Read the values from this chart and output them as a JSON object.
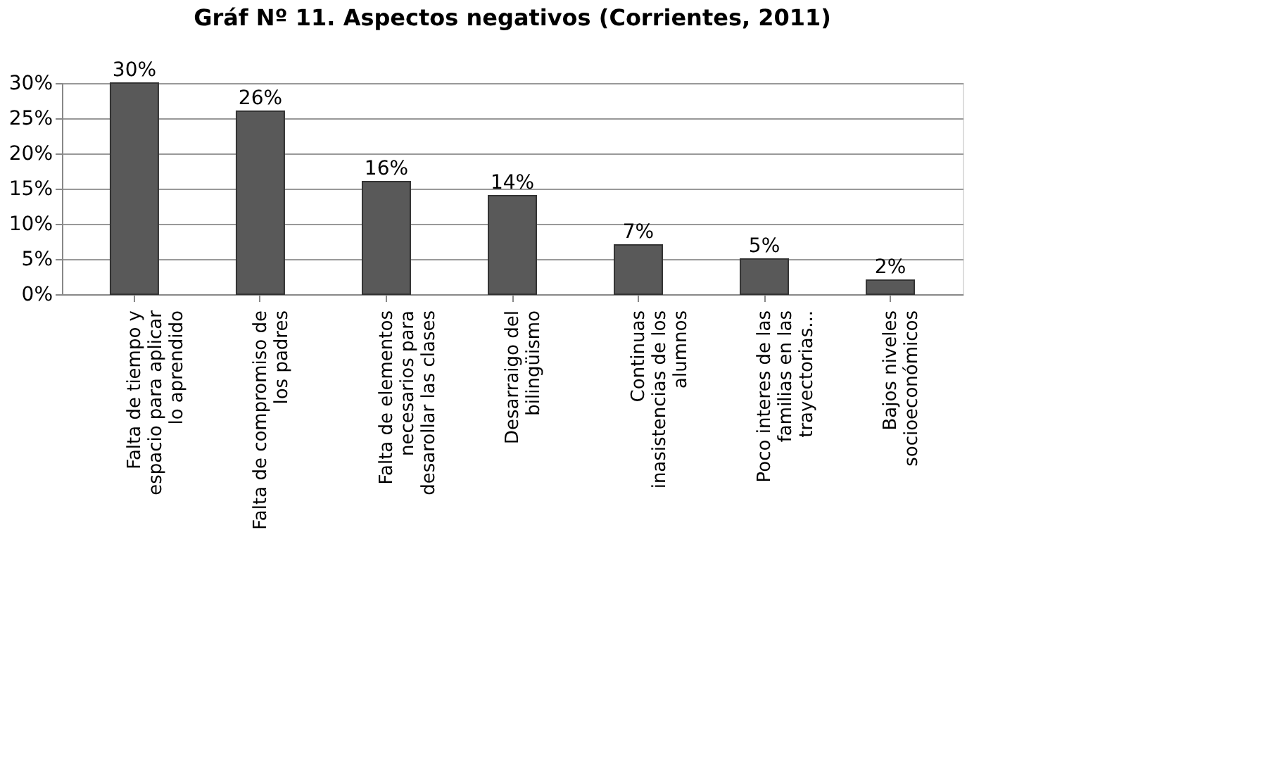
{
  "chart_data": {
    "type": "bar",
    "title": "Gráf Nº 11. Aspectos negativos (Corrientes, 2011)",
    "categories": [
      "Falta de tiempo y espacio para aplicar lo aprendido",
      "Falta de compromiso de los padres",
      "Falta de elementos necesarios para desarollar las clases",
      "Desarraigo del bilingüismo",
      "Continuas inasistencias de los alumnos",
      "Poco interes de las familias en las trayectorias...",
      "Bajos niveles socioeconómicos"
    ],
    "values": [
      30,
      26,
      16,
      14,
      7,
      5,
      2
    ],
    "value_labels": [
      "30%",
      "26%",
      "16%",
      "14%",
      "7%",
      "5%",
      "2%"
    ],
    "color": "#595959",
    "ylim": [
      0,
      30
    ],
    "yticks": [
      {
        "value": 0,
        "label": "0%"
      },
      {
        "value": 5,
        "label": "5%"
      },
      {
        "value": 10,
        "label": "10%"
      },
      {
        "value": 15,
        "label": "15%"
      },
      {
        "value": 20,
        "label": "20%"
      },
      {
        "value": 25,
        "label": "25%"
      },
      {
        "value": 30,
        "label": "30%"
      }
    ],
    "grid": "y"
  }
}
